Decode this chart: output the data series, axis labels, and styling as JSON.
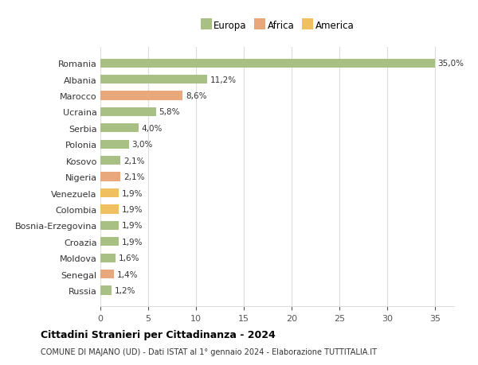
{
  "countries": [
    "Romania",
    "Albania",
    "Marocco",
    "Ucraina",
    "Serbia",
    "Polonia",
    "Kosovo",
    "Nigeria",
    "Venezuela",
    "Colombia",
    "Bosnia-Erzegovina",
    "Croazia",
    "Moldova",
    "Senegal",
    "Russia"
  ],
  "values": [
    35.0,
    11.2,
    8.6,
    5.8,
    4.0,
    3.0,
    2.1,
    2.1,
    1.9,
    1.9,
    1.9,
    1.9,
    1.6,
    1.4,
    1.2
  ],
  "continents": [
    "Europa",
    "Europa",
    "Africa",
    "Europa",
    "Europa",
    "Europa",
    "Europa",
    "Africa",
    "America",
    "America",
    "Europa",
    "Europa",
    "Europa",
    "Africa",
    "Europa"
  ],
  "colors": {
    "Europa": "#a8c084",
    "Africa": "#e8a87c",
    "America": "#f0c060"
  },
  "legend_labels": [
    "Europa",
    "Africa",
    "America"
  ],
  "title": "Cittadini Stranieri per Cittadinanza - 2024",
  "subtitle": "COMUNE DI MAJANO (UD) - Dati ISTAT al 1° gennaio 2024 - Elaborazione TUTTITALIA.IT",
  "xlim": [
    0,
    37
  ],
  "xticks": [
    0,
    5,
    10,
    15,
    20,
    25,
    30,
    35
  ],
  "background_color": "#ffffff",
  "grid_color": "#dddddd",
  "bar_height": 0.55
}
